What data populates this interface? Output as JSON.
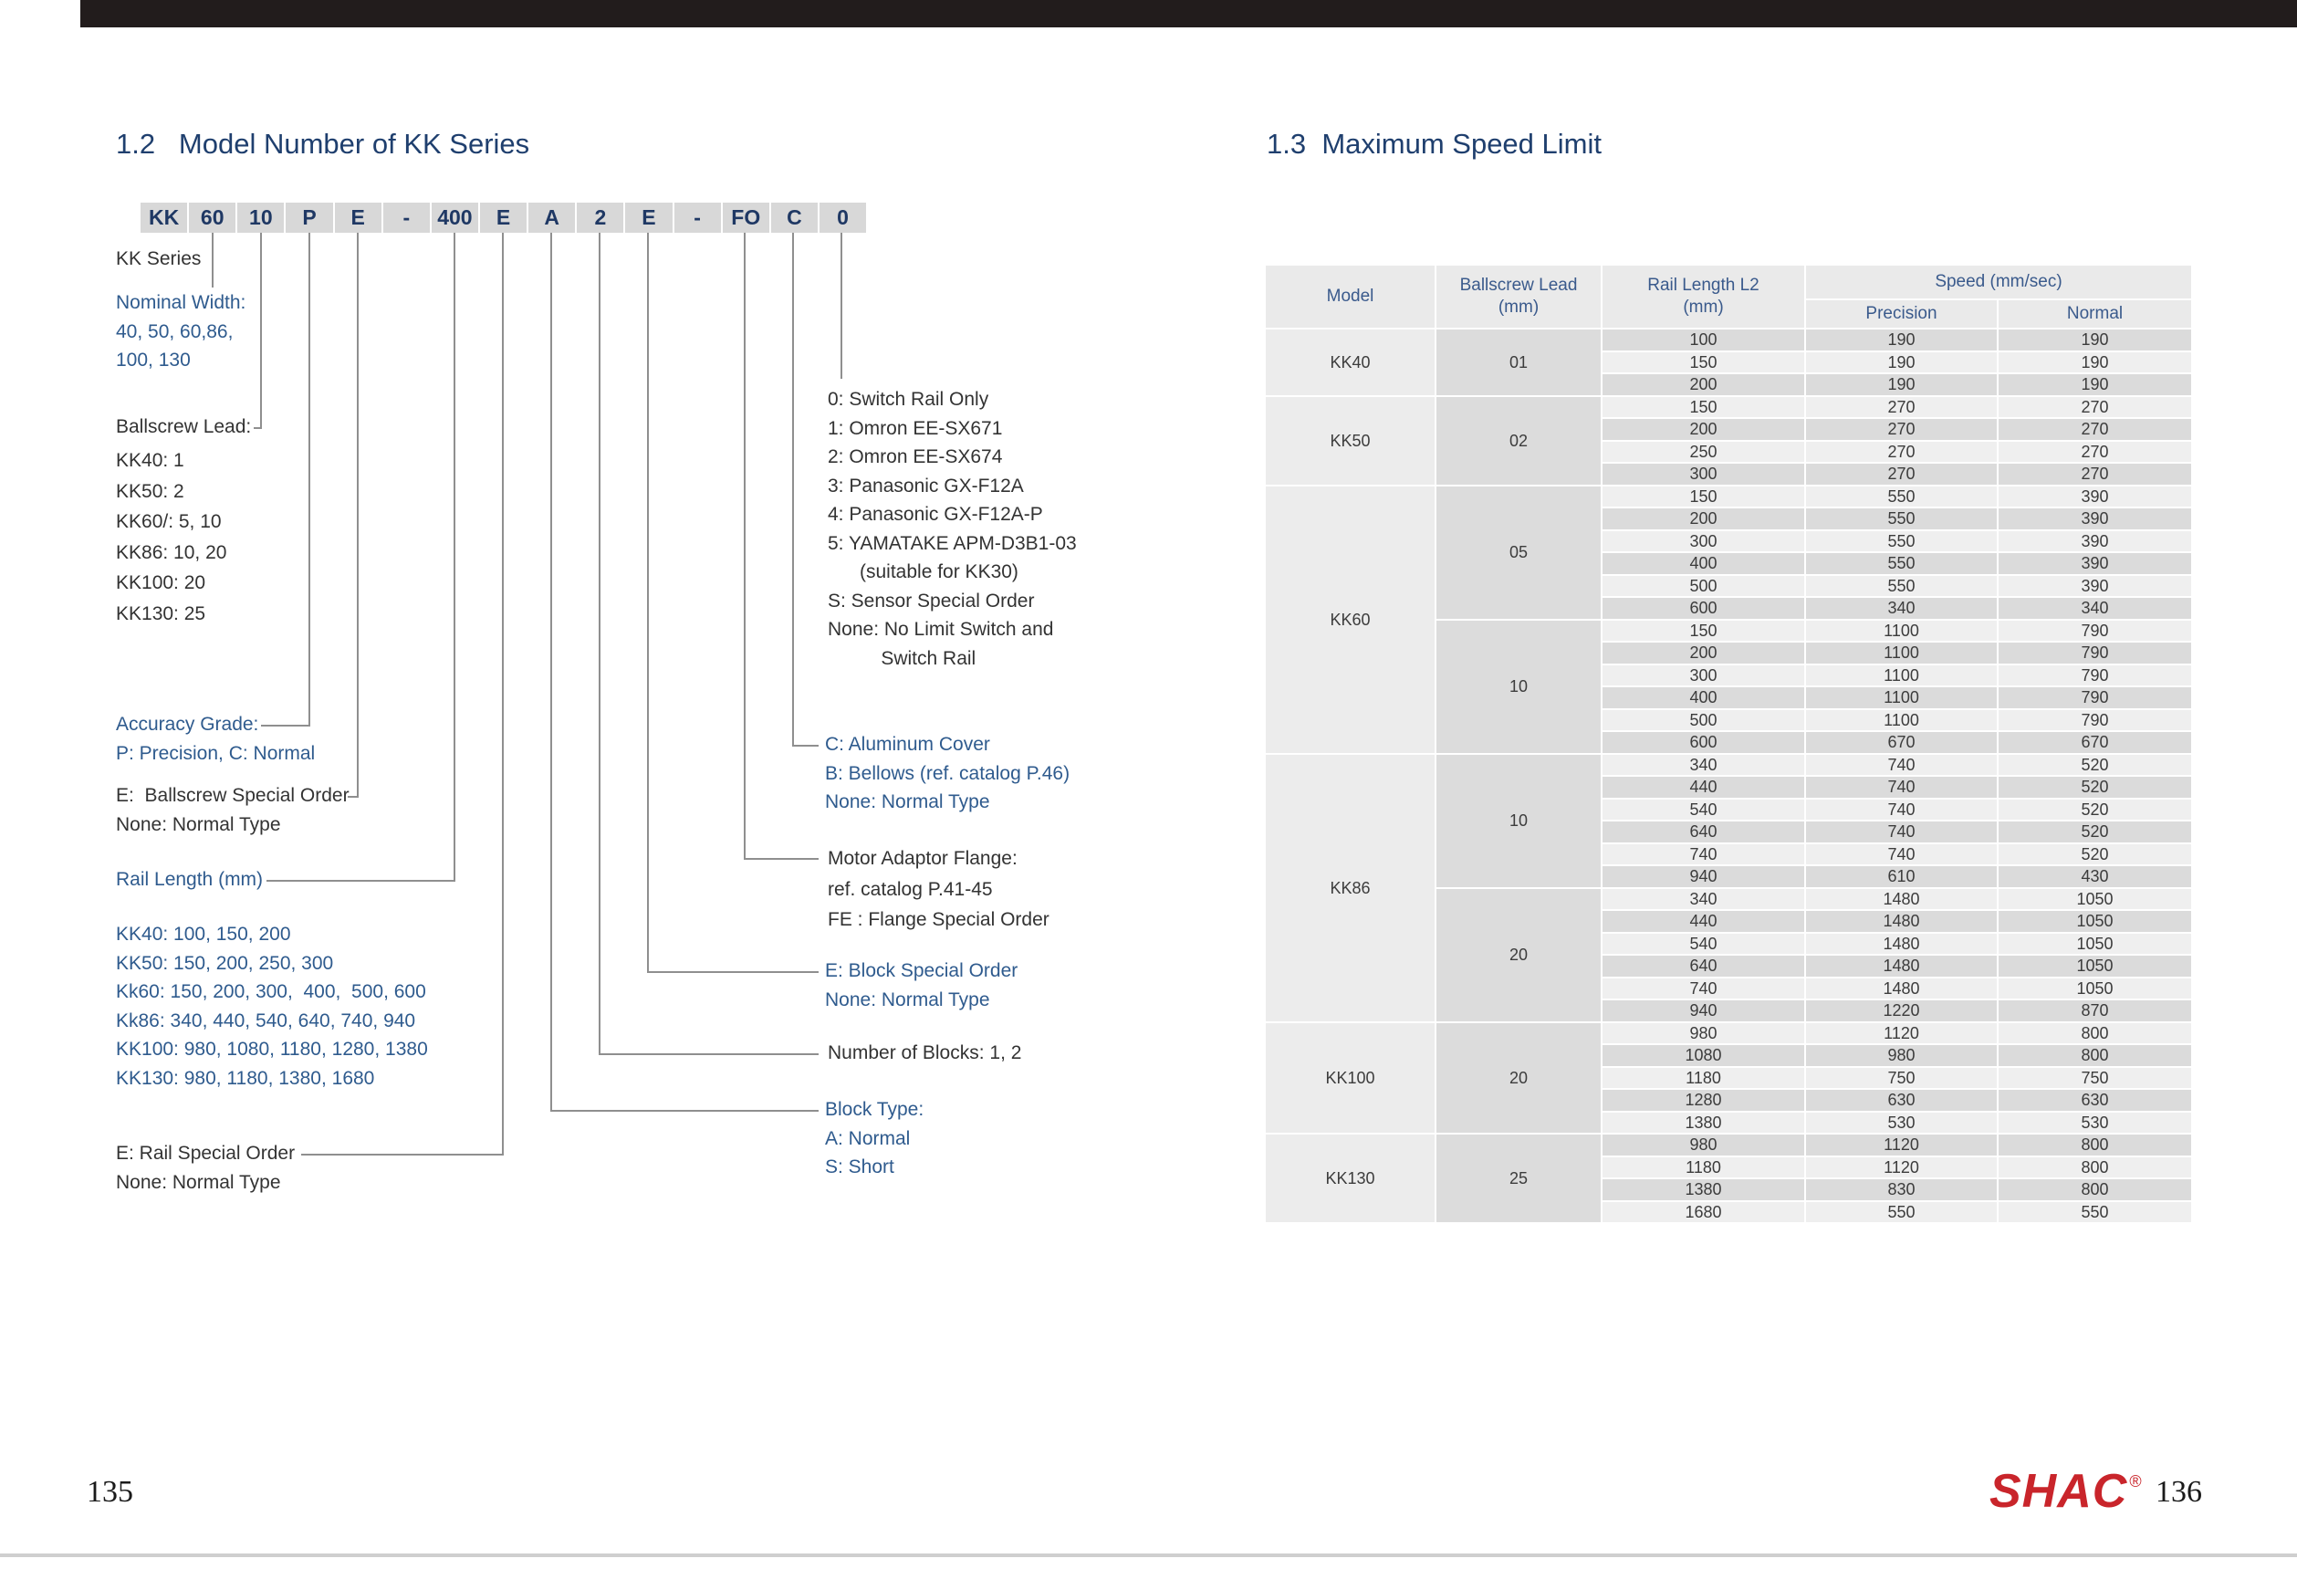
{
  "colors": {
    "title_navy": "#1F3F6E",
    "annotation_blue": "#2F5B8E",
    "annotation_black": "#333333",
    "brand_red": "#C9252B",
    "cell_gray_dark": "#DBDBDB",
    "cell_gray_light": "#EFEFEF"
  },
  "model_section": {
    "title": "1.2   Model Number of KK Series",
    "code_segments": [
      "KK",
      "60",
      "10",
      "P",
      "E",
      "-",
      "400",
      "E",
      "A",
      "2",
      "E",
      "-",
      "FO",
      "C",
      "0"
    ],
    "blocks": {
      "kk_series": {
        "lines": [
          "KK Series"
        ]
      },
      "nominal_width": {
        "lines": [
          "Nominal Width:",
          "40, 50, 60,86,",
          "100, 130"
        ]
      },
      "ballscrew_lead_label": {
        "lines": [
          "Ballscrew Lead:"
        ]
      },
      "ballscrew_lead_values": {
        "lines": [
          "KK40: 1",
          "KK50: 2",
          "KK60/: 5, 10",
          "KK86: 10, 20",
          "KK100: 20",
          "KK130: 25"
        ]
      },
      "accuracy_grade": {
        "lines": [
          "Accuracy Grade:",
          "P: Precision, C: Normal"
        ]
      },
      "ballscrew_special": {
        "lines": [
          "E:  Ballscrew Special Order",
          "None: Normal Type"
        ]
      },
      "rail_length_label": {
        "lines": [
          "Rail Length (mm)"
        ]
      },
      "rail_length_values": {
        "lines": [
          "KK40: 100, 150, 200",
          "KK50: 150, 200, 250, 300",
          "Kk60: 150, 200, 300,  400,  500, 600",
          "Kk86: 340, 440, 540, 640, 740, 940",
          "KK100: 980, 1080, 1180, 1280, 1380",
          "KK130: 980, 1180, 1380, 1680"
        ]
      },
      "rail_special": {
        "lines": [
          "E: Rail Special Order",
          "None: Normal Type"
        ]
      },
      "limit_switch": {
        "lines": [
          "0: Switch Rail Only",
          "1: Omron EE-SX671",
          "2: Omron EE-SX674",
          "3: Panasonic GX-F12A",
          "4: Panasonic GX-F12A-P",
          "5: YAMATAKE APM-D3B1-03",
          "      (suitable for KK30)",
          "S: Sensor Special Order",
          "None: No Limit Switch and",
          "          Switch Rail"
        ]
      },
      "cover": {
        "lines": [
          "C: Aluminum Cover",
          "B: Bellows (ref. catalog P.46)",
          "None: Normal Type"
        ]
      },
      "motor_flange": {
        "lines": [
          "Motor Adaptor Flange:",
          "ref. catalog P.41-45",
          "FE : Flange Special Order"
        ]
      },
      "block_special": {
        "lines": [
          "E: Block Special Order",
          "None: Normal Type"
        ]
      },
      "number_of_blocks": {
        "lines": [
          "Number of Blocks: 1, 2"
        ]
      },
      "block_type": {
        "lines": [
          "Block Type:",
          "A: Normal",
          "S: Short"
        ]
      }
    }
  },
  "speed_section": {
    "title": "1.3  Maximum Speed Limit",
    "table": {
      "headers": {
        "model": "Model",
        "ballscrew_lead_line1": "Ballscrew Lead",
        "ballscrew_lead_line2": "(mm)",
        "rail_length_line1": "Rail Length L2",
        "rail_length_line2": "(mm)",
        "speed": "Speed (mm/sec)",
        "precision": "Precision",
        "normal": "Normal"
      },
      "groups": [
        {
          "model": "KK40",
          "lead": "01",
          "rows": [
            [
              "100",
              "190",
              "190"
            ],
            [
              "150",
              "190",
              "190"
            ],
            [
              "200",
              "190",
              "190"
            ]
          ]
        },
        {
          "model": "KK50",
          "lead": "02",
          "rows": [
            [
              "150",
              "270",
              "270"
            ],
            [
              "200",
              "270",
              "270"
            ],
            [
              "250",
              "270",
              "270"
            ],
            [
              "300",
              "270",
              "270"
            ]
          ]
        },
        {
          "model": "KK60",
          "lead": "05",
          "rows": [
            [
              "150",
              "550",
              "390"
            ],
            [
              "200",
              "550",
              "390"
            ],
            [
              "300",
              "550",
              "390"
            ],
            [
              "400",
              "550",
              "390"
            ],
            [
              "500",
              "550",
              "390"
            ],
            [
              "600",
              "340",
              "340"
            ]
          ]
        },
        {
          "model": "KK60",
          "lead": "10",
          "rows": [
            [
              "150",
              "1100",
              "790"
            ],
            [
              "200",
              "1100",
              "790"
            ],
            [
              "300",
              "1100",
              "790"
            ],
            [
              "400",
              "1100",
              "790"
            ],
            [
              "500",
              "1100",
              "790"
            ],
            [
              "600",
              "670",
              "670"
            ]
          ]
        },
        {
          "model": "KK86",
          "lead": "10",
          "rows": [
            [
              "340",
              "740",
              "520"
            ],
            [
              "440",
              "740",
              "520"
            ],
            [
              "540",
              "740",
              "520"
            ],
            [
              "640",
              "740",
              "520"
            ],
            [
              "740",
              "740",
              "520"
            ],
            [
              "940",
              "610",
              "430"
            ]
          ]
        },
        {
          "model": "KK86",
          "lead": "20",
          "rows": [
            [
              "340",
              "1480",
              "1050"
            ],
            [
              "440",
              "1480",
              "1050"
            ],
            [
              "540",
              "1480",
              "1050"
            ],
            [
              "640",
              "1480",
              "1050"
            ],
            [
              "740",
              "1480",
              "1050"
            ],
            [
              "940",
              "1220",
              "870"
            ]
          ]
        },
        {
          "model": "KK100",
          "lead": "20",
          "rows": [
            [
              "980",
              "1120",
              "800"
            ],
            [
              "1080",
              "980",
              "800"
            ],
            [
              "1180",
              "750",
              "750"
            ],
            [
              "1280",
              "630",
              "630"
            ],
            [
              "1380",
              "530",
              "530"
            ]
          ]
        },
        {
          "model": "KK130",
          "lead": "25",
          "rows": [
            [
              "980",
              "1120",
              "800"
            ],
            [
              "1180",
              "1120",
              "800"
            ],
            [
              "1380",
              "830",
              "800"
            ],
            [
              "1680",
              "550",
              "550"
            ]
          ]
        }
      ]
    }
  },
  "footer": {
    "left_page_number": "135",
    "right_page_number": "136",
    "brand": "SHAC",
    "registered_mark": "®"
  }
}
